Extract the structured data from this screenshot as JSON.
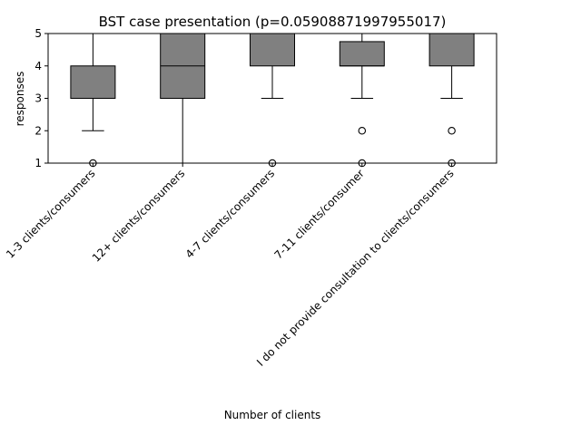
{
  "chart_data": {
    "type": "box",
    "title": "BST case presentation (p=0.05908871997955017)",
    "xlabel": "Number of clients",
    "ylabel": "responses",
    "ylim": [
      1,
      5
    ],
    "yticks": [
      1,
      2,
      3,
      4,
      5
    ],
    "grid": false,
    "legend": "none",
    "box_color": "#808080",
    "categories": [
      "1-3 clients/consumers",
      "12+ clients/consumers",
      "4-7 clients/consumers",
      "7-11 clients/consumer",
      "I do not provide consultation to clients/consumers"
    ],
    "boxes": [
      {
        "category": "1-3 clients/consumers",
        "whislo": 2,
        "q1": 3,
        "med": 3,
        "q3": 4,
        "whishi": 5,
        "fliers": [
          1
        ]
      },
      {
        "category": "12+ clients/consumers",
        "whislo": 1,
        "q1": 3,
        "med": 4,
        "q3": 5,
        "whishi": 5,
        "fliers": []
      },
      {
        "category": "4-7 clients/consumers",
        "whislo": 3,
        "q1": 4,
        "med": 5,
        "q3": 5,
        "whishi": 5,
        "fliers": [
          1
        ]
      },
      {
        "category": "7-11 clients/consumer",
        "whislo": 3,
        "q1": 4,
        "med": 4,
        "q3": 4.75,
        "whishi": 5,
        "fliers": [
          2,
          1
        ]
      },
      {
        "category": "I do not provide consultation to clients/consumers",
        "whislo": 3,
        "q1": 4,
        "med": 5,
        "q3": 5,
        "whishi": 5,
        "fliers": [
          2,
          1
        ]
      }
    ]
  }
}
